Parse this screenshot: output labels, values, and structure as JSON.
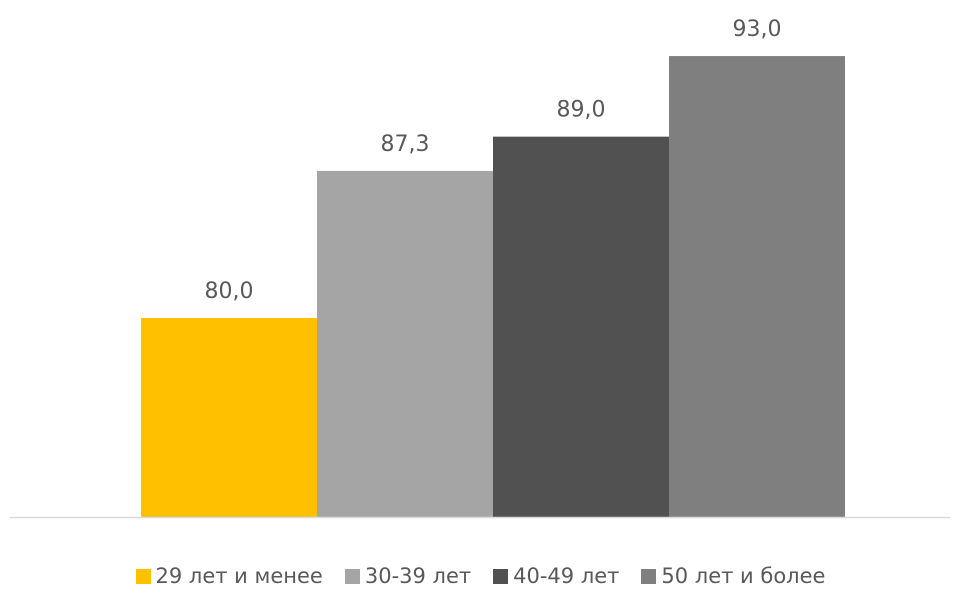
{
  "chart_data": {
    "type": "bar",
    "series": [
      {
        "name": "29 лет и менее",
        "value": 80.0,
        "label": "80,0",
        "color": "#FFC000"
      },
      {
        "name": "30-39 лет",
        "value": 87.3,
        "label": "87,3",
        "color": "#A5A5A5"
      },
      {
        "name": "40-49 лет",
        "value": 89.0,
        "label": "89,0",
        "color": "#515151"
      },
      {
        "name": "50 лет и более",
        "value": 93.0,
        "label": "93,0",
        "color": "#7F7F7F"
      }
    ],
    "ylim": [
      0,
      100
    ],
    "grid": false,
    "legend_position": "bottom",
    "axis_color": "#D9D9D9",
    "label_color": "#595959"
  }
}
